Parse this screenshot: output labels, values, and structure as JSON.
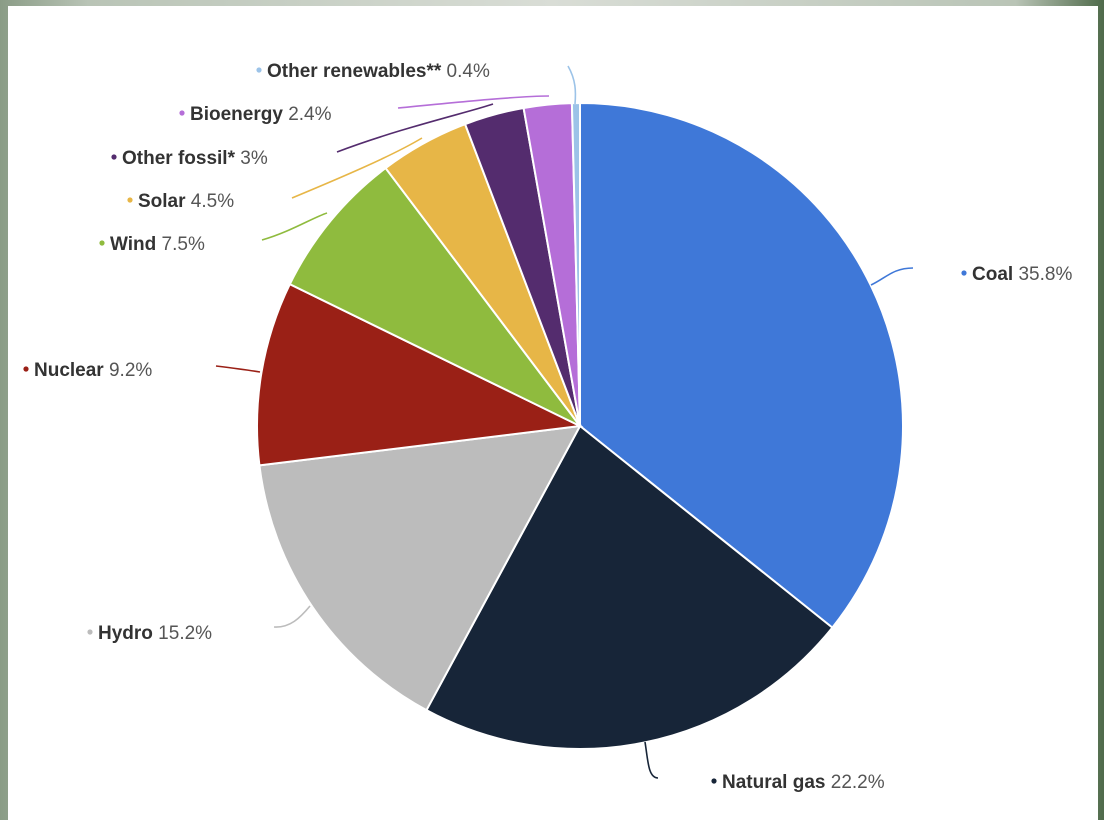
{
  "chart_data": {
    "type": "pie",
    "slices": [
      {
        "label": "Coal",
        "value": 35.8,
        "display": "35.8%",
        "color": "#3f78d8"
      },
      {
        "label": "Natural gas",
        "value": 22.2,
        "display": "22.2%",
        "color": "#172538"
      },
      {
        "label": "Hydro",
        "value": 15.2,
        "display": "15.2%",
        "color": "#bcbcbc"
      },
      {
        "label": "Nuclear",
        "value": 9.2,
        "display": "9.2%",
        "color": "#9a2016"
      },
      {
        "label": "Wind",
        "value": 7.5,
        "display": "7.5%",
        "color": "#8fbb3e"
      },
      {
        "label": "Solar",
        "value": 4.5,
        "display": "4.5%",
        "color": "#e7b647"
      },
      {
        "label": "Other fossil*",
        "value": 3,
        "display": "3%",
        "color": "#542c6e"
      },
      {
        "label": "Bioenergy",
        "value": 2.4,
        "display": "2.4%",
        "color": "#b56ed8"
      },
      {
        "label": "Other renewables**",
        "value": 0.4,
        "display": "0.4%",
        "color": "#9cc3e8"
      }
    ]
  }
}
